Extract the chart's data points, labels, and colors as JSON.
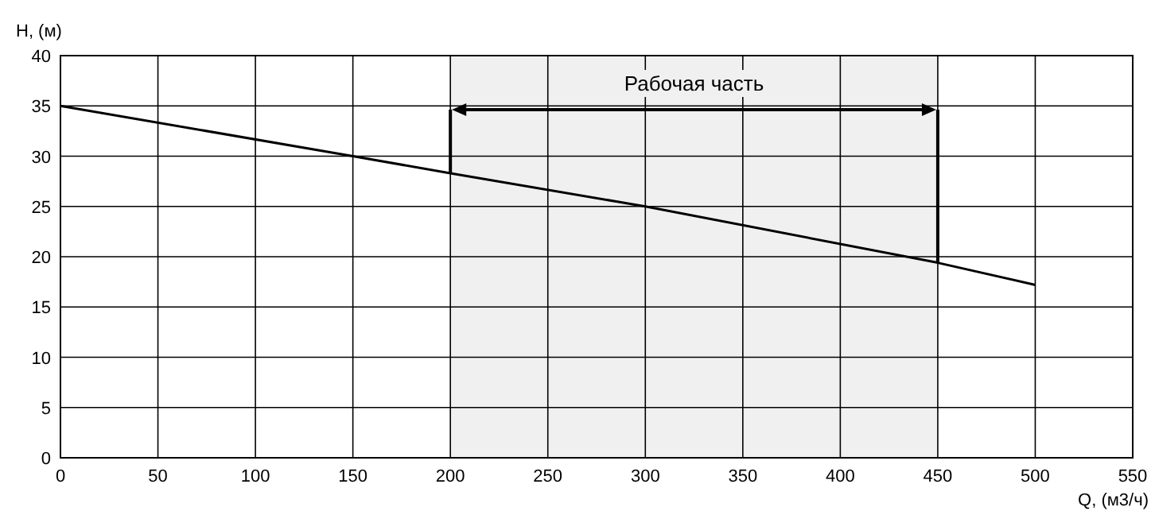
{
  "chart_data": {
    "type": "line",
    "xlabel": "Q, (м3/ч)",
    "ylabel": "H, (м)",
    "x": [
      0,
      150,
      200,
      300,
      450,
      500
    ],
    "series": [
      {
        "color": "#000000",
        "values": [
          35,
          30,
          28.3,
          25,
          19.4,
          17.2
        ]
      }
    ],
    "xlim": [
      0,
      550
    ],
    "xticks": [
      0,
      50,
      100,
      150,
      200,
      250,
      300,
      350,
      400,
      450,
      500,
      550
    ],
    "ylim": [
      0,
      40
    ],
    "yticks": [
      0,
      5,
      10,
      15,
      20,
      25,
      30,
      35,
      40
    ],
    "grid": true,
    "marker": "none",
    "line_style": "solid",
    "bands": [
      {
        "axis": "x",
        "from": 200,
        "to": 450,
        "label": "Рабочая часть",
        "color": "#f0f0f0"
      }
    ]
  }
}
